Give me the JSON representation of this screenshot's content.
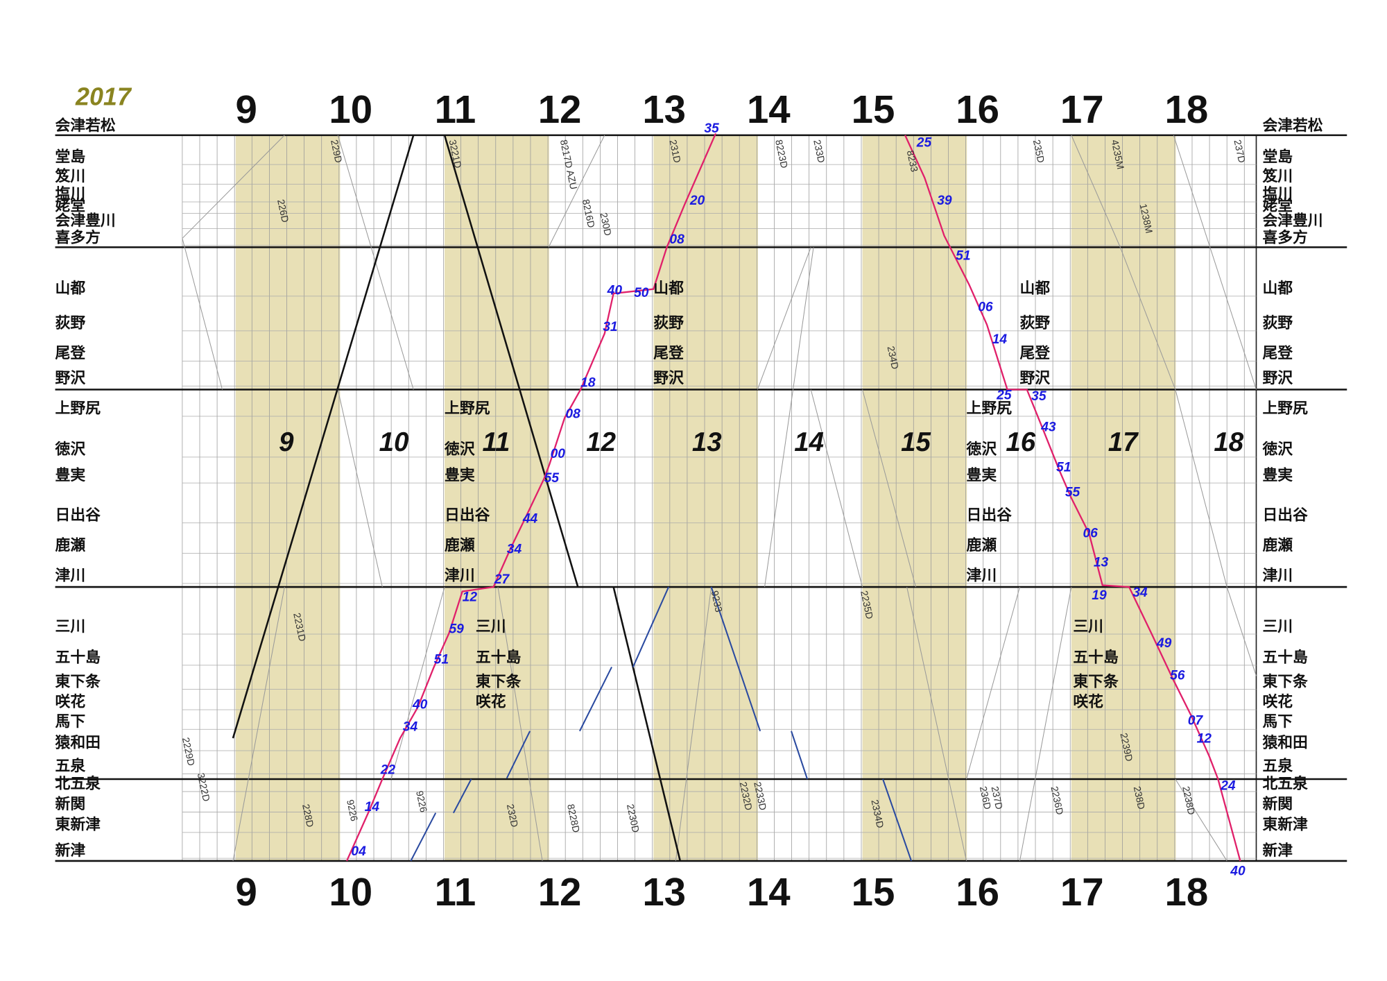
{
  "year": "2017",
  "hours": [
    "9",
    "10",
    "11",
    "12",
    "13",
    "14",
    "15",
    "16",
    "17",
    "18"
  ],
  "stations": [
    "会津若松",
    "堂島",
    "笈川",
    "塩川",
    "姥堂",
    "会津豊川",
    "喜多方",
    "山都",
    "荻野",
    "尾登",
    "野沢",
    "上野尻",
    "徳沢",
    "豊実",
    "日出谷",
    "鹿瀬",
    "津川",
    "三川",
    "五十島",
    "東下条",
    "咲花",
    "馬下",
    "猿和田",
    "五泉",
    "北五泉",
    "新関",
    "東新津",
    "新津"
  ],
  "train_labels": [
    "229D",
    "226D",
    "2231D",
    "2229D",
    "3222D",
    "228D",
    "9226",
    "9226",
    "3221D",
    "232D",
    "8217D AZU",
    "8216D",
    "230D",
    "8228D",
    "2230D",
    "231D",
    "8223D",
    "233D",
    "2232D",
    "2233D",
    "9233",
    "234D",
    "2235D",
    "2334D",
    "8233",
    "235D",
    "236D",
    "237D",
    "2236D",
    "4235M",
    "1238M",
    "2239D",
    "238D",
    "2238D",
    "237D"
  ],
  "trains": [
    {
      "minutes": [
        "04",
        "14",
        "22",
        "34",
        "40",
        "51",
        "59",
        "12",
        "27",
        "34",
        "44",
        "55",
        "00",
        "08",
        "18",
        "31",
        "40",
        "50",
        "08",
        "20",
        "35"
      ]
    },
    {
      "minutes": [
        "25",
        "39",
        "51",
        "06",
        "14",
        "25",
        "35",
        "43",
        "51",
        "55",
        "06",
        "13",
        "19",
        "34",
        "49",
        "56",
        "07",
        "12",
        "24",
        "40"
      ]
    }
  ]
}
